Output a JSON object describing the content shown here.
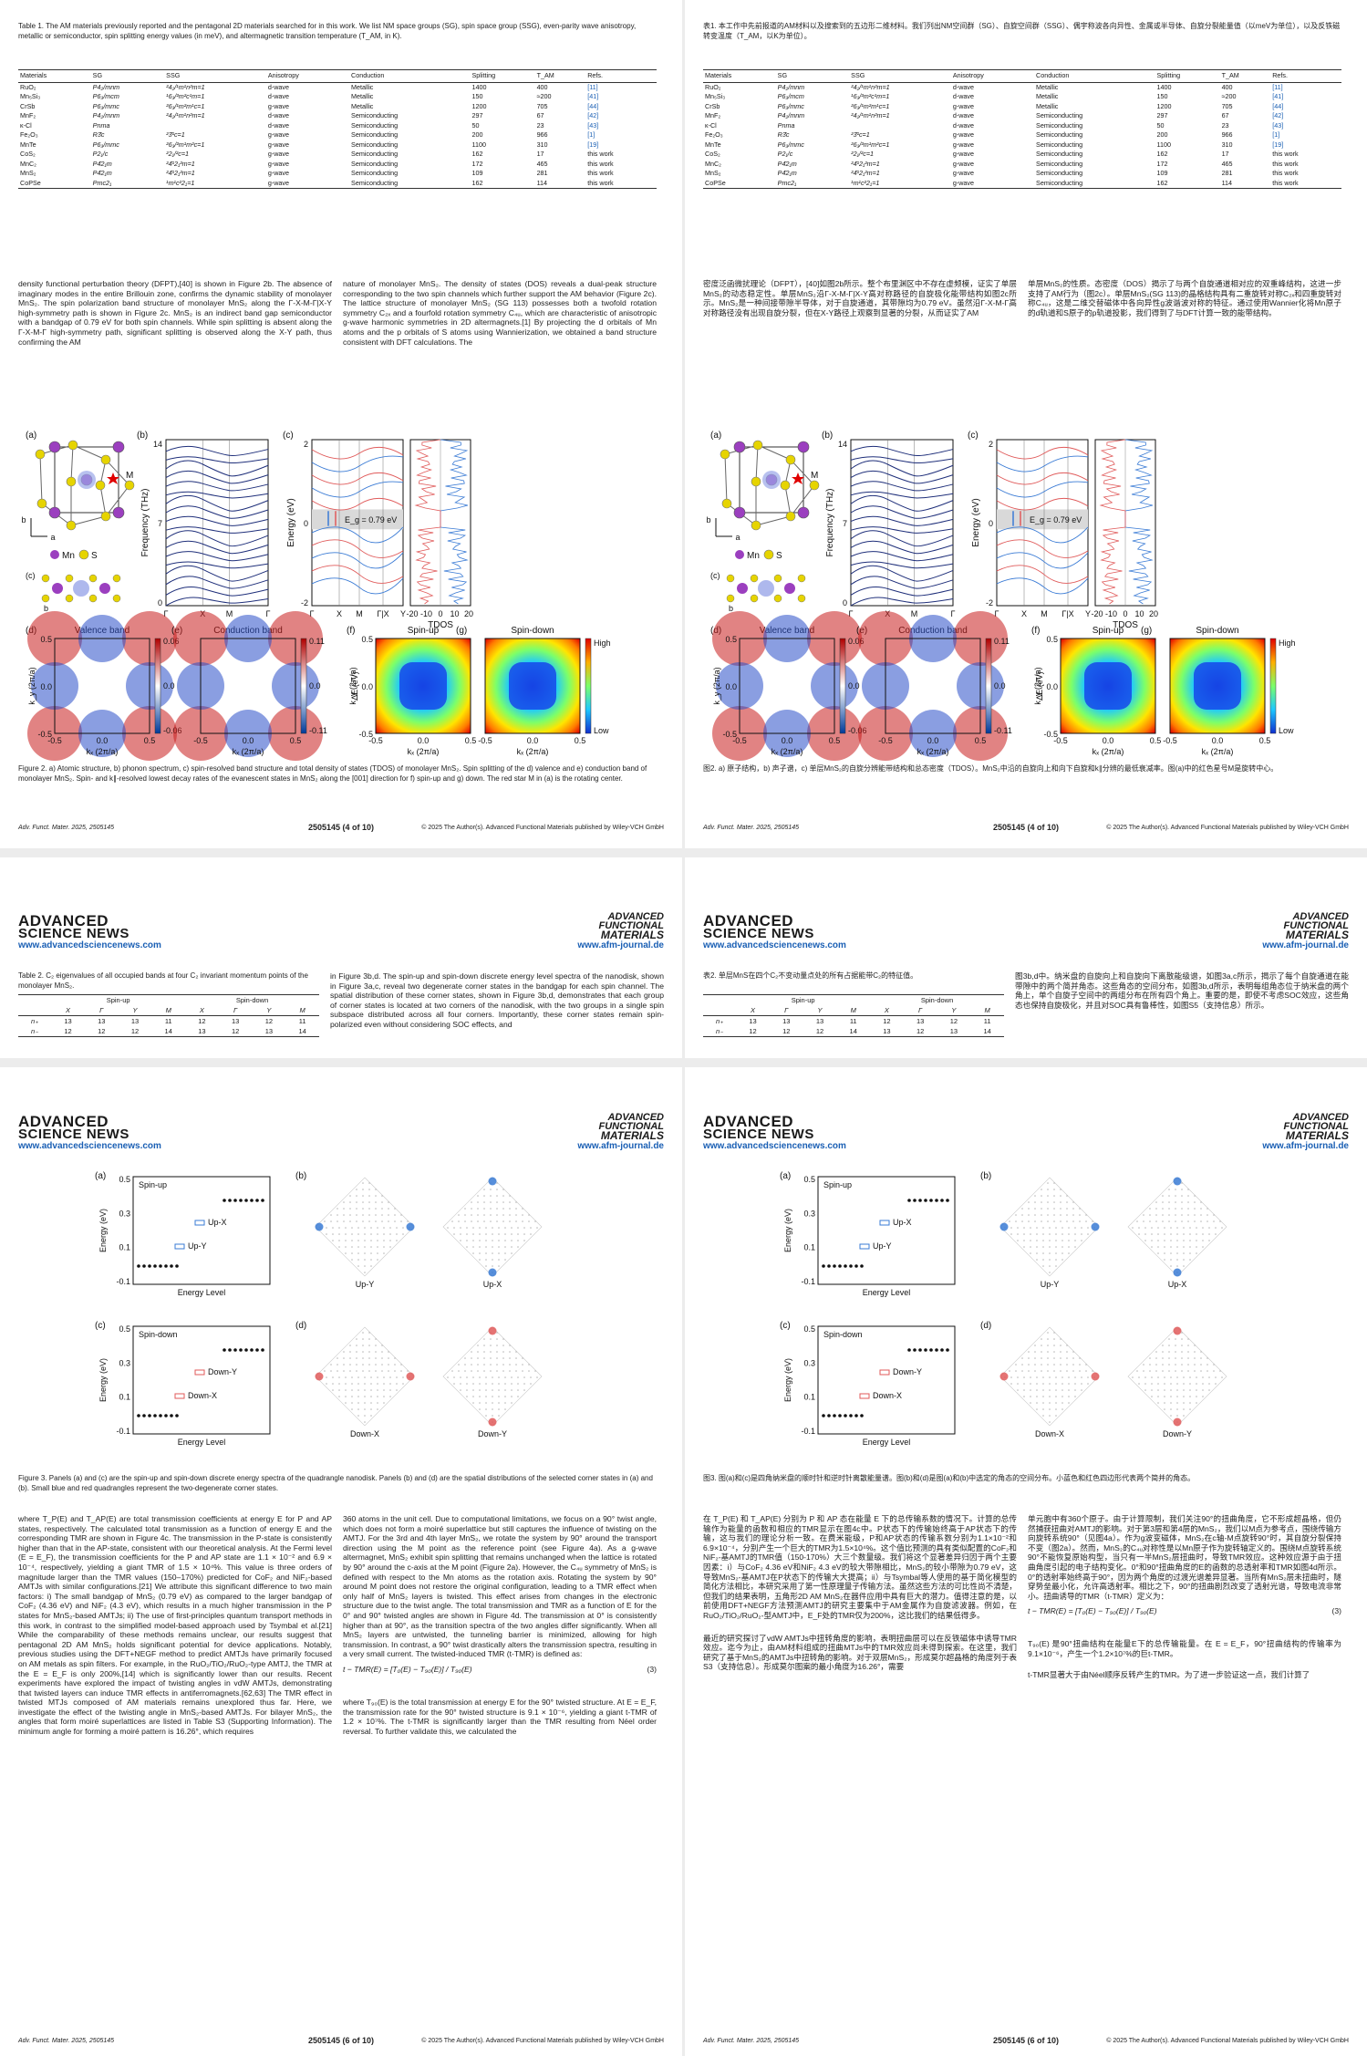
{
  "journal": {
    "name_top": "ADVANCED",
    "name_bottom": "SCIENCE NEWS",
    "url_left": "www.advancedsciencenews.com",
    "mast_top": "ADVANCED",
    "mast_mid": "FUNCTIONAL",
    "mast_bottom": "MATERIALS",
    "url_right": "www.afm-journal.de"
  },
  "page4": {
    "table_caption_en": "Table 1. The AM materials previously reported and the pentagonal 2D materials searched for in this work. We list NM space groups (SG), spin space group (SSG), even-parity wave anisotropy, metallic or semiconductor, spin splitting energy values (in meV), and altermagnetic transition temperature (T_AM, in K).",
    "table_caption_zh": "表1. 本工作中先前报道的AM材料以及搜索到的五边形二维材料。我们列出NM空间群（SG）、自旋空间群（SSG）、偶宇称波各向异性、金属或半导体、自旋分裂能量值（以meV为单位），以及反铁磁转变温度（T_AM，以K为单位）。",
    "table_headers": [
      "Materials",
      "SG",
      "SSG",
      "Anisotropy",
      "Conduction",
      "Splitting",
      "T_AM",
      "Refs."
    ],
    "table_rows": [
      [
        "RuO₂",
        "P4₂/mnm",
        "²4₂/¹m¹n²m=1",
        "d-wave",
        "Metallic",
        "1400",
        "400",
        "[11]"
      ],
      [
        "Mn₅Si₃",
        "P6₃/mcm",
        "¹6₃/²m²c¹m=1",
        "d-wave",
        "Metallic",
        "150",
        "≈200",
        "[41]"
      ],
      [
        "CrSb",
        "P6₃/mmc",
        "²6₃/¹m²m¹c=1",
        "g-wave",
        "Metallic",
        "1200",
        "705",
        "[44]"
      ],
      [
        "MnF₂",
        "P4₂/mnm",
        "²4₂/¹m¹n²m=1",
        "d-wave",
        "Semiconducting",
        "297",
        "67",
        "[42]"
      ],
      [
        "κ-Cl",
        "Pnma",
        "",
        "d-wave",
        "Semiconducting",
        "50",
        "23",
        "[43]"
      ],
      [
        "Fe₂O₃",
        "R3̄c",
        "²3̄¹c=1",
        "g-wave",
        "Semiconducting",
        "200",
        "966",
        "[1]"
      ],
      [
        "MnTe",
        "P6₃/mmc",
        "²6₃/²m¹m²c=1",
        "g-wave",
        "Semiconducting",
        "1100",
        "310",
        "[19]"
      ],
      [
        "CoS₂",
        "P2₁/c",
        "²2₁/²c=1",
        "g-wave",
        "Semiconducting",
        "162",
        "17",
        "this work"
      ],
      [
        "MnC₂",
        "P4̄2₁m",
        "²4̄¹2₁²m=1",
        "g-wave",
        "Semiconducting",
        "172",
        "465",
        "this work"
      ],
      [
        "MnS₂",
        "P4̄2₁m",
        "²4̄¹2₁²m=1",
        "g-wave",
        "Semiconducting",
        "109",
        "281",
        "this work"
      ],
      [
        "CoPSe",
        "Pmc2₁",
        "¹m¹c²2₁=1",
        "g-wave",
        "Semiconducting",
        "162",
        "114",
        "this work"
      ]
    ],
    "body_en_left": "density functional perturbation theory (DFPT),[40] is shown in Figure 2b. The absence of imaginary modes in the entire Brillouin zone, confirms the dynamic stability of monolayer MnS₂. The spin polarization band structure of monolayer MnS₂ along the Γ-X-M-Γ|X-Y high-symmetry path is shown in Figure 2c. MnS₂ is an indirect band gap semiconductor with a bandgap of 0.79 eV for both spin channels. While spin splitting is absent along the Γ-X-M-Γ high-symmetry path, significant splitting is observed along the X-Y path, thus confirming the AM",
    "body_en_right": "nature of monolayer MnS₂. The density of states (DOS) reveals a dual-peak structure corresponding to the two spin channels which further support the AM behavior (Figure 2c). The lattice structure of monolayer MnS₂ (SG 113) possesses both a twofold rotation symmetry C₂ₓ and a fourfold rotation symmetry C₄ᵤ, which are characteristic of anisotropic g-wave harmonic symmetries in 2D altermagnets.[1] By projecting the d orbitals of Mn atoms and the p orbitals of S atoms using Wannierization, we obtained a band structure consistent with DFT calculations. The",
    "body_zh_left": "密度泛函微扰理论（DFPT），[40]如图2b所示。整个布里渊区中不存在虚频模，证实了单层MnS₂的动态稳定性。单层MnS₂沿Γ-X-M-Γ|X-Y高对称路径的自旋极化能带结构如图2c所示。MnS₂是一种间接带隙半导体，对于自旋通道，其带隙均为0.79 eV。虽然沿Γ-X-M-Γ高对称路径没有出现自旋分裂，但在X-Y路径上观察到显著的分裂，从而证实了AM",
    "body_zh_right": "单层MnS₂的性质。态密度（DOS）揭示了与两个自旋通道相对应的双重峰结构，这进一步支持了AM行为（图2c）。单层MnS₂(SG 113)的晶格结构具有二重旋转对称C₂ₓ和四重旋转对称C₄ᵤ，这是二维交替磁体中各向异性g波谐波对称的特征。通过使用Wannier化将Mn原子的d轨道和S原子的p轨道投影，我们得到了与DFT计算一致的能带结构。",
    "fig_caption_en": "Figure 2. a) Atomic structure, b) phonon spectrum, c) spin-resolved band structure and total density of states (TDOS) of monolayer MnS₂. Spin splitting of the d) valence and e) conduction band of monolayer MnS₂. Spin- and k∥-resolved lowest decay rates of the evanescent states in MnS₂ along the [001] direction for f) spin-up and g) down. The red star M in (a) is the rotating center.",
    "fig_caption_zh": "图2. a) 原子结构，b) 声子谱，c) 单层MnS₂的自旋分辨能带结构和总态密度（TDOS）。MnS₂中沿的自旋向上和向下自旋和k∥分辨的最低衰减率。图(a)中的红色星号M是旋转中心。",
    "foot_left": "Adv. Funct. Mater. 2025, 2505145",
    "foot_center": "2505145 (4 of 10)",
    "foot_right": "© 2025 The Author(s). Advanced Functional Materials published by Wiley-VCH GmbH",
    "labels": {
      "a": "(a)",
      "b": "(b)",
      "c": "(c)",
      "d": "(d)",
      "e": "(e)",
      "f": "(f)",
      "g": "(g)",
      "mn": "Mn",
      "s": "S",
      "m_star": "M",
      "freq_axis": "Frequency (THz)",
      "energy_axis": "Energy (eV)",
      "gap": "E_g = 0.79 eV",
      "tdos": "TDOS",
      "kpath_b": [
        "Γ",
        "X",
        "M",
        "Γ"
      ],
      "kpath_c": [
        "Γ",
        "X",
        "M",
        "Γ|X",
        "Y"
      ],
      "valence": "Valence band",
      "conduction": "Conduction band",
      "spin_up": "Spin-up",
      "spin_down": "Spin-down",
      "kx": "kₓ (2π/a)",
      "ky": "k_y (2π/a)",
      "de": "ΔE (eV)",
      "high": "High",
      "low": "Low",
      "freq_ticks": [
        "14",
        "7",
        "0"
      ],
      "energy_ticks": [
        "2",
        "0",
        "-2"
      ],
      "tdos_ticks": [
        "-20",
        "-10",
        "0",
        "10",
        "20"
      ],
      "vb_ticks": [
        "0.06",
        "0.0",
        "-0.06"
      ],
      "cb_ticks": [
        "0.11",
        "0.0",
        "-0.11"
      ],
      "k_ticks": [
        "-0.5",
        "0.0",
        "0.5"
      ]
    }
  },
  "page5": {
    "table_caption_en": "Table 2. C₂ eigenvalues of all occupied bands at four C₂ invariant momentum points of the monolayer MnS₂.",
    "table_caption_zh": "表2. 单层MnS在四个C₂不变动量点处的所有占据能带C₂的特征值。",
    "spin_up": "Spin-up",
    "spin_down": "Spin-down",
    "cols": [
      "X",
      "Γ",
      "Y",
      "M",
      "X",
      "Γ",
      "Y",
      "M"
    ],
    "rows": [
      {
        "label": "n₊",
        "vals": [
          "13",
          "13",
          "13",
          "11",
          "12",
          "13",
          "12",
          "11"
        ]
      },
      {
        "label": "n₋",
        "vals": [
          "12",
          "12",
          "12",
          "14",
          "13",
          "12",
          "13",
          "14"
        ]
      }
    ],
    "body_en": "in Figure 3b,d. The spin-up and spin-down discrete energy level spectra of the nanodisk, shown in Figure 3a,c, reveal two degenerate corner states in the bandgap for each spin channel. The spatial distribution of these corner states, shown in Figure 3b,d, demonstrates that each group of corner states is located at two corners of the nanodisk, with the two groups in a single spin subspace distributed across all four corners. Importantly, these corner states remain spin-polarized even without considering SOC effects, and",
    "body_zh": "图3b,d中。纳米盘的自旋向上和自旋向下离散能级谱，如图3a,c所示，揭示了每个自旋通道在能带隙中的两个简并角态。这些角态的空间分布，如图3b,d所示，表明每组角态位于纳米盘的两个角上，单个自旋子空间中的两组分布在所有四个角上。重要的是，即使不考虑SOC效应，这些角态也保持自旋极化，并且对SOC具有鲁棒性，如图S5（支持信息）所示。"
  },
  "page6": {
    "labels": {
      "a": "(a)",
      "b": "(b)",
      "c": "(c)",
      "d": "(d)",
      "spin_up": "Spin-up",
      "spin_down": "Spin-down",
      "energy": "Energy (eV)",
      "energy_level": "Energy Level",
      "up_x": "Up-X",
      "up_y": "Up-Y",
      "down_x": "Down-X",
      "down_y": "Down-Y",
      "e_ticks": [
        "0.5",
        "0.3",
        "0.1",
        "-0.1"
      ]
    },
    "fig_caption_en": "Figure 3. Panels (a) and (c) are the spin-up and spin-down discrete energy spectra of the quadrangle nanodisk. Panels (b) and (d) are the spatial distributions of the selected corner states in (a) and (b). Small blue and red quadrangles represent the two-degenerate corner states.",
    "fig_caption_zh": "图3. 图(a)和(c)是四角纳米盘的顺时针和逆时针离散能量谱。图(b)和(d)是图(a)和(b)中选定的角态的空间分布。小蓝色和红色四边形代表两个简并的角态。",
    "body_en_left": "where T_P(E) and T_AP(E) are total transmission coefficients at energy E for P and AP states, respectively. The calculated total transmission as a function of energy E and the corresponding TMR are shown in Figure 4c. The transmission in the P-state is consistently higher than that in the AP-state, consistent with our theoretical analysis. At the Fermi level (E = E_F), the transmission coefficients for the P and AP state are 1.1 × 10⁻² and 6.9 × 10⁻⁴, respectively, yielding a giant TMR of 1.5 × 10⁴%. This value is three orders of magnitude larger than the TMR values (150–170%) predicted for CoF₂ and NiF₂-based AMTJs with similar configurations.[21] We attribute this significant difference to two main factors: i) The small bandgap of MnS₂ (0.79 eV) as compared to the larger bandgap of CoF₂ (4.36 eV) and NiF₂ (4.3 eV), which results in a much higher transmission in the P states for MnS₂-based AMTJs; ii) The use of first-principles quantum transport methods in this work, in contrast to the simplified model-based approach used by Tsymbal et al.[21] While the comparability of these methods remains unclear, our results suggest that pentagonal 2D AM MnS₂ holds significant potential for device applications. Notably, previous studies using the DFT+NEGF method to predict AMTJs have primarily focused on AM metals as spin filters. For example, in the RuO₂/TiO₂/RuO₂-type AMTJ, the TMR at the E = E_F is only 200%,[14] which is significantly lower than our results. Recent experiments have explored the impact of twisting angles in vdW AMTJs, demonstrating that twisted layers can induce TMR effects in antiferromagnets.[62,63] The TMR effect in twisted MTJs composed of AM materials remains unexplored thus far. Here, we investigate the effect of the twisting angle in MnS₂-based AMTJs. For bilayer MnS₂, the angles that form moiré superlattices are listed in Table S3 (Supporting Information). The minimum angle for forming a moiré pattern is 16.26°, which requires",
    "body_en_right": "360 atoms in the unit cell. Due to computational limitations, we focus on a 90° twist angle, which does not form a moiré superlattice but still captures the influence of twisting on the AMTJ. For the 3rd and 4th layer MnS₂, we rotate the system by 90° around the transport direction using the M point as the reference point (see Figure 4a). As a g-wave altermagnet, MnS₂ exhibit spin splitting that remains unchanged when the lattice is rotated by 90° around the c-axis at the M point (Figure 2a). However, the C₄ᵤ symmetry of MnS₂ is defined with respect to the Mn atoms as the rotation axis. Rotating the system by 90° around M point does not restore the original configuration, leading to a TMR effect when only half of MnS₂ layers is twisted. This effect arises from changes in the electronic structure due to the twist angle. The total transmission and TMR as a function of E for the 0° and 90° twisted angles are shown in Figure 4d. The transmission at 0° is consistently higher than at 90°, as the transition spectra of the two angles differ significantly. When all MnS₂ layers are untwisted, the tunneling barrier is minimized, allowing for high transmission. In contrast, a 90° twist drastically alters the transmission spectra, resulting in a very small current. The twisted-induced TMR (t-TMR) is defined as:",
    "eq_en": "t − TMR(E) = [T₀(E) − T₉₀(E)] / T₉₀(E)",
    "eq_num": "(3)",
    "body_en_after": "where T₉₀(E) is the total transmission at energy E for the 90° twisted structure. At E = E_F, the transmission rate for the 90° twisted structure is 9.1 × 10⁻⁶, yielding a giant t-TMR of 1.2 × 10⁷%. The t-TMR is significantly larger than the TMR resulting from Néel order reversal. To further validate this, we calculated the",
    "body_zh_left": "在 T_P(E) 和 T_AP(E) 分别为 P 和 AP 态在能量 E 下的总传输系数的情况下。计算的总传输作为能量的函数和相应的TMR显示在图4c中。P状态下的传输始终高于AP状态下的传输，这与我们的理论分析一致。在费米能级，P和AP状态的传输系数分别为1.1×10⁻²和6.9×10⁻⁴，分别产生一个巨大的TMR为1.5×10⁴%。这个值比预测的具有类似配置的CoF₂和NiF₂-基AMTJ的TMR值（150-170%）大三个数量级。我们将这个显著差异归因于两个主要因素：i）与CoF₂ 4.36 eV和NiF₂ 4.3 eV的较大带隙相比，MnS₂的较小带隙为0.79 eV，这导致MnS₂-基AMTJ在P状态下的传输大大提高；ii）与Tsymbal等人使用的基于简化模型的简化方法相比，本研究采用了第一性原理量子传输方法。虽然这些方法的可比性尚不清楚，但我们的结果表明，五角形2D AM MnS₂在器件应用中具有巨大的潜力。值得注意的是，以前使用DFT+NEGF方法预测AMTJ的研究主要集中于AM金属作为自旋滤波器。例如，在RuO₂/TiO₂/RuO₂-型AMTJ中，E_F处的TMR仅为200%，这比我们的结果低得多。",
    "body_zh_left2": "最近的研究探讨了vdW AMTJs中扭转角度的影响，表明扭曲层可以在反铁磁体中诱导TMR效应。迄今为止，由AM材料组成的扭曲MTJs中的TMR效应尚未得到探索。在这里，我们研究了基于MnS₂的AMTJs中扭转角的影响。对于双层MnS₂，形成莫尔超晶格的角度列于表S3（支持信息）。形成莫尔图案的最小角度为16.26°，需要",
    "body_zh_right": "单元胞中有360个原子。由于计算限制，我们关注90°的扭曲角度，它不形成超晶格，但仍然捕获扭曲对AMTJ的影响。对于第3层和第4层的MnS₂，我们以M点为参考点，围绕传输方向旋转系统90°（见图4a）。作为g波变磁体，MnS₂在c轴-M点旋转90°时，其自旋分裂保持不变（图2a）。然而，MnS₂的C₄ᵤ对称性是以Mn原子作为旋转轴定义的。围绕M点旋转系统90°不能恢复原始构型，当只有一半MnS₂层扭曲时，导致TMR效应。这种效应源于由于扭曲角度引起的电子结构变化。0°和90°扭曲角度的E的函数的总透射率和TMR如图4d所示。0°的透射率始终高于90°，因为两个角度的过渡光谱差异显著。当所有MnS₂层未扭曲时，隧穿势垒最小化，允许高透射率。相比之下，90°的扭曲剧烈改变了透射光谱，导致电流非常小。扭曲诱导的TMR（t-TMR）定义为：",
    "body_zh_after": "T₉₀(E) 是90°扭曲结构在能量E下的总传输能量。在 E = E_F，90°扭曲结构的传输率为9.1×10⁻⁶，产生一个1.2×10⁷%的巨t-TMR。",
    "body_zh_after2": "t-TMR显著大于由Néel顺序反转产生的TMR。为了进一步验证这一点，我们计算了",
    "foot_left": "Adv. Funct. Mater. 2025, 2505145",
    "foot_center": "2505145 (6 of 10)",
    "foot_right": "© 2025 The Author(s). Advanced Functional Materials published by Wiley-VCH GmbH"
  },
  "colors": {
    "link": "#1a5fb4",
    "spin_up": "#3a7bd5",
    "spin_down": "#e05a5a",
    "mn_atom": "#9b3fbf",
    "s_atom": "#e6d400",
    "phonon": "#1f2f7a"
  }
}
